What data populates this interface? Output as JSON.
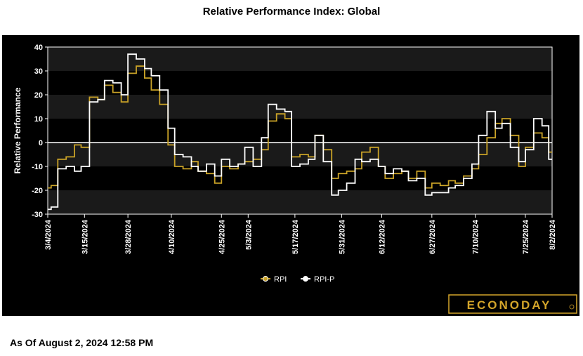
{
  "page": {
    "title": "Relative Performance Index: Global",
    "as_of": "As Of August 2, 2024 12:58 PM",
    "brand": "ECONODAY"
  },
  "colors": {
    "background": "#000000",
    "band": "#1a1a1a",
    "rpi": "#c9a227",
    "rpi_p": "#ffffff",
    "brand_gold": "#d4a52a"
  },
  "chart_data": {
    "type": "line",
    "title": "Relative Performance Index: Global",
    "xlabel": "",
    "ylabel": "Relative Performance",
    "ylim": [
      -30,
      40
    ],
    "yticks": [
      -30,
      -20,
      -10,
      0,
      10,
      20,
      30,
      40
    ],
    "xrange": [
      "2024-03-04",
      "2024-08-02"
    ],
    "xticks": [
      "3/4/2024",
      "3/15/2024",
      "3/28/2024",
      "4/10/2024",
      "4/25/2024",
      "5/3/2024",
      "5/17/2024",
      "5/31/2024",
      "6/12/2024",
      "6/27/2024",
      "7/10/2024",
      "7/25/2024",
      "8/2/2024"
    ],
    "legend": {
      "position": "bottom",
      "entries": [
        "RPI",
        "RPI-P"
      ]
    },
    "series": [
      {
        "name": "RPI",
        "color": "#c9a227",
        "x": [
          "2024-03-04",
          "2024-03-06",
          "2024-03-08",
          "2024-03-11",
          "2024-03-13",
          "2024-03-15",
          "2024-03-18",
          "2024-03-20",
          "2024-03-22",
          "2024-03-25",
          "2024-03-27",
          "2024-03-29",
          "2024-04-01",
          "2024-04-03",
          "2024-04-05",
          "2024-04-08",
          "2024-04-10",
          "2024-04-12",
          "2024-04-15",
          "2024-04-17",
          "2024-04-19",
          "2024-04-22",
          "2024-04-24",
          "2024-04-26",
          "2024-04-29",
          "2024-05-01",
          "2024-05-03",
          "2024-05-06",
          "2024-05-08",
          "2024-05-10",
          "2024-05-13",
          "2024-05-15",
          "2024-05-17",
          "2024-05-20",
          "2024-05-22",
          "2024-05-24",
          "2024-05-27",
          "2024-05-29",
          "2024-05-31",
          "2024-06-03",
          "2024-06-05",
          "2024-06-07",
          "2024-06-10",
          "2024-06-12",
          "2024-06-14",
          "2024-06-17",
          "2024-06-19",
          "2024-06-21",
          "2024-06-24",
          "2024-06-26",
          "2024-06-28",
          "2024-07-01",
          "2024-07-03",
          "2024-07-05",
          "2024-07-08",
          "2024-07-10",
          "2024-07-12",
          "2024-07-15",
          "2024-07-17",
          "2024-07-19",
          "2024-07-22",
          "2024-07-24",
          "2024-07-26",
          "2024-07-29",
          "2024-07-31",
          "2024-08-02"
        ],
        "y": [
          -19,
          -18,
          -7,
          -6,
          -1,
          -2,
          19,
          18,
          24,
          21,
          17,
          29,
          32,
          27,
          22,
          16,
          -1,
          -10,
          -11,
          -8,
          -12,
          -13,
          -17,
          -10,
          -11,
          -9,
          -8,
          -7,
          -3,
          9,
          12,
          10,
          -6,
          -5,
          -6,
          3,
          -3,
          -15,
          -13,
          -12,
          -11,
          -4,
          -2,
          -10,
          -15,
          -13,
          -12,
          -15,
          -12,
          -19,
          -17,
          -18,
          -16,
          -17,
          -14,
          -11,
          -5,
          2,
          8,
          10,
          3,
          -10,
          -2,
          4,
          2,
          -4
        ],
        "last_value": -4
      },
      {
        "name": "RPI-P",
        "color": "#ffffff",
        "x": [
          "2024-03-04",
          "2024-03-06",
          "2024-03-08",
          "2024-03-11",
          "2024-03-13",
          "2024-03-15",
          "2024-03-18",
          "2024-03-20",
          "2024-03-22",
          "2024-03-25",
          "2024-03-27",
          "2024-03-29",
          "2024-04-01",
          "2024-04-03",
          "2024-04-05",
          "2024-04-08",
          "2024-04-10",
          "2024-04-12",
          "2024-04-15",
          "2024-04-17",
          "2024-04-19",
          "2024-04-22",
          "2024-04-24",
          "2024-04-26",
          "2024-04-29",
          "2024-05-01",
          "2024-05-03",
          "2024-05-06",
          "2024-05-08",
          "2024-05-10",
          "2024-05-13",
          "2024-05-15",
          "2024-05-17",
          "2024-05-20",
          "2024-05-22",
          "2024-05-24",
          "2024-05-27",
          "2024-05-29",
          "2024-05-31",
          "2024-06-03",
          "2024-06-05",
          "2024-06-07",
          "2024-06-10",
          "2024-06-12",
          "2024-06-14",
          "2024-06-17",
          "2024-06-19",
          "2024-06-21",
          "2024-06-24",
          "2024-06-26",
          "2024-06-28",
          "2024-07-01",
          "2024-07-03",
          "2024-07-05",
          "2024-07-08",
          "2024-07-10",
          "2024-07-12",
          "2024-07-15",
          "2024-07-17",
          "2024-07-19",
          "2024-07-22",
          "2024-07-24",
          "2024-07-26",
          "2024-07-29",
          "2024-07-31",
          "2024-08-02"
        ],
        "y": [
          -28,
          -27,
          -11,
          -10,
          -12,
          -10,
          17,
          18,
          26,
          25,
          20,
          37,
          35,
          31,
          28,
          22,
          6,
          -5,
          -6,
          -10,
          -12,
          -9,
          -14,
          -7,
          -10,
          -9,
          -2,
          -10,
          2,
          16,
          14,
          13,
          -10,
          -9,
          -7,
          3,
          -8,
          -22,
          -20,
          -17,
          -7,
          -8,
          -7,
          -10,
          -13,
          -11,
          -12,
          -16,
          -15,
          -22,
          -21,
          -21,
          -19,
          -18,
          -15,
          -9,
          3,
          13,
          6,
          8,
          -2,
          -8,
          -3,
          10,
          7,
          -7
        ],
        "last_value": -7
      }
    ]
  }
}
